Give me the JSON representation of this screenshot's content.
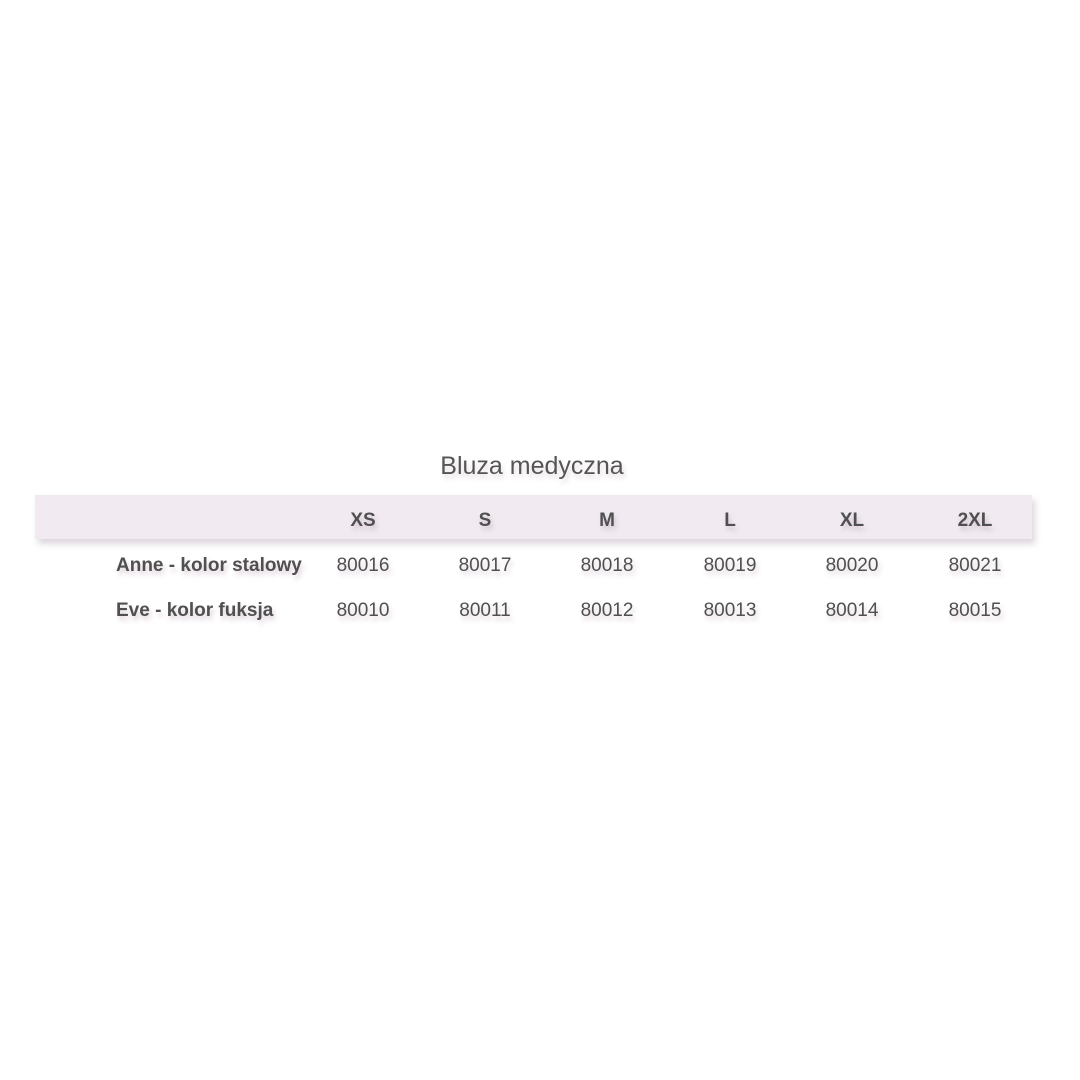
{
  "title": "Bluza medyczna",
  "table": {
    "header_bg": "#f1ebf1",
    "columns": [
      "XS",
      "S",
      "M",
      "L",
      "XL",
      "2XL"
    ],
    "rows": [
      {
        "label": "Anne - kolor stalowy",
        "values": [
          "80016",
          "80017",
          "80018",
          "80019",
          "80020",
          "80021"
        ]
      },
      {
        "label": "Eve - kolor fuksja",
        "values": [
          "80010",
          "80011",
          "80012",
          "80013",
          "80014",
          "80015"
        ]
      }
    ]
  }
}
